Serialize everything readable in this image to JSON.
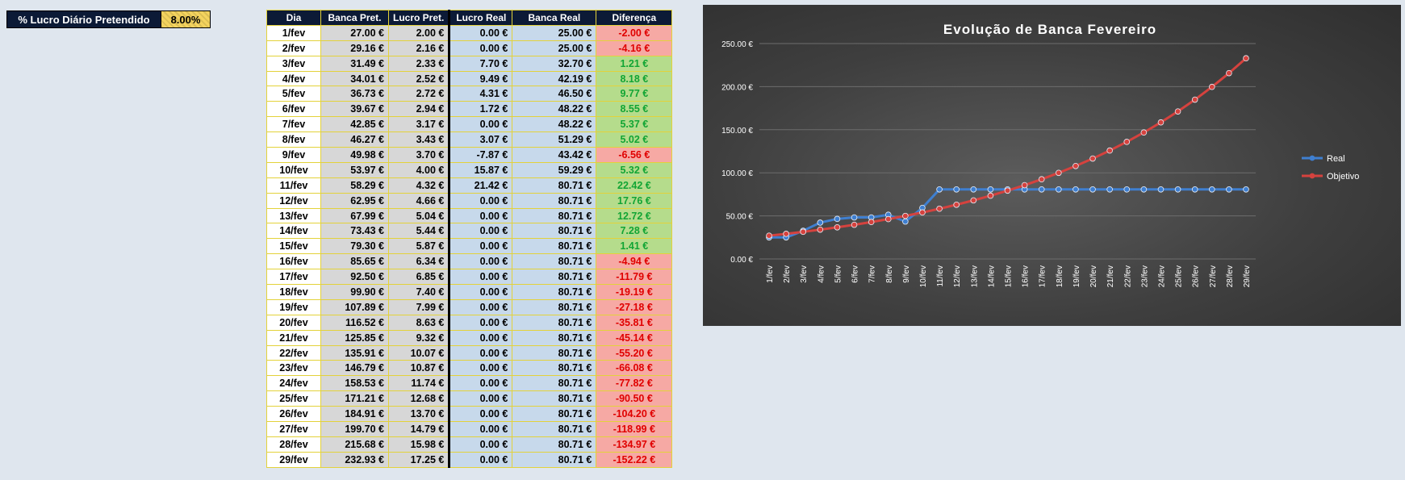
{
  "parameter": {
    "label": "% Lucro Diário Pretendido",
    "value": "8.00%"
  },
  "table": {
    "headers": [
      "Dia",
      "Banca Pret.",
      "Lucro Pret.",
      "Lucro Real",
      "Banca Real",
      "Diferença"
    ],
    "rows": [
      [
        "1/fev",
        "27.00 €",
        "2.00 €",
        "0.00 €",
        "25.00 €",
        "-2.00 €"
      ],
      [
        "2/fev",
        "29.16 €",
        "2.16 €",
        "0.00 €",
        "25.00 €",
        "-4.16 €"
      ],
      [
        "3/fev",
        "31.49 €",
        "2.33 €",
        "7.70 €",
        "32.70 €",
        "1.21 €"
      ],
      [
        "4/fev",
        "34.01 €",
        "2.52 €",
        "9.49 €",
        "42.19 €",
        "8.18 €"
      ],
      [
        "5/fev",
        "36.73 €",
        "2.72 €",
        "4.31 €",
        "46.50 €",
        "9.77 €"
      ],
      [
        "6/fev",
        "39.67 €",
        "2.94 €",
        "1.72 €",
        "48.22 €",
        "8.55 €"
      ],
      [
        "7/fev",
        "42.85 €",
        "3.17 €",
        "0.00 €",
        "48.22 €",
        "5.37 €"
      ],
      [
        "8/fev",
        "46.27 €",
        "3.43 €",
        "3.07 €",
        "51.29 €",
        "5.02 €"
      ],
      [
        "9/fev",
        "49.98 €",
        "3.70 €",
        "-7.87 €",
        "43.42 €",
        "-6.56 €"
      ],
      [
        "10/fev",
        "53.97 €",
        "4.00 €",
        "15.87 €",
        "59.29 €",
        "5.32 €"
      ],
      [
        "11/fev",
        "58.29 €",
        "4.32 €",
        "21.42 €",
        "80.71 €",
        "22.42 €"
      ],
      [
        "12/fev",
        "62.95 €",
        "4.66 €",
        "0.00 €",
        "80.71 €",
        "17.76 €"
      ],
      [
        "13/fev",
        "67.99 €",
        "5.04 €",
        "0.00 €",
        "80.71 €",
        "12.72 €"
      ],
      [
        "14/fev",
        "73.43 €",
        "5.44 €",
        "0.00 €",
        "80.71 €",
        "7.28 €"
      ],
      [
        "15/fev",
        "79.30 €",
        "5.87 €",
        "0.00 €",
        "80.71 €",
        "1.41 €"
      ],
      [
        "16/fev",
        "85.65 €",
        "6.34 €",
        "0.00 €",
        "80.71 €",
        "-4.94 €"
      ],
      [
        "17/fev",
        "92.50 €",
        "6.85 €",
        "0.00 €",
        "80.71 €",
        "-11.79 €"
      ],
      [
        "18/fev",
        "99.90 €",
        "7.40 €",
        "0.00 €",
        "80.71 €",
        "-19.19 €"
      ],
      [
        "19/fev",
        "107.89 €",
        "7.99 €",
        "0.00 €",
        "80.71 €",
        "-27.18 €"
      ],
      [
        "20/fev",
        "116.52 €",
        "8.63 €",
        "0.00 €",
        "80.71 €",
        "-35.81 €"
      ],
      [
        "21/fev",
        "125.85 €",
        "9.32 €",
        "0.00 €",
        "80.71 €",
        "-45.14 €"
      ],
      [
        "22/fev",
        "135.91 €",
        "10.07 €",
        "0.00 €",
        "80.71 €",
        "-55.20 €"
      ],
      [
        "23/fev",
        "146.79 €",
        "10.87 €",
        "0.00 €",
        "80.71 €",
        "-66.08 €"
      ],
      [
        "24/fev",
        "158.53 €",
        "11.74 €",
        "0.00 €",
        "80.71 €",
        "-77.82 €"
      ],
      [
        "25/fev",
        "171.21 €",
        "12.68 €",
        "0.00 €",
        "80.71 €",
        "-90.50 €"
      ],
      [
        "26/fev",
        "184.91 €",
        "13.70 €",
        "0.00 €",
        "80.71 €",
        "-104.20 €"
      ],
      [
        "27/fev",
        "199.70 €",
        "14.79 €",
        "0.00 €",
        "80.71 €",
        "-118.99 €"
      ],
      [
        "28/fev",
        "215.68 €",
        "15.98 €",
        "0.00 €",
        "80.71 €",
        "-134.97 €"
      ],
      [
        "29/fev",
        "232.93 €",
        "17.25 €",
        "0.00 €",
        "80.71 €",
        "-152.22 €"
      ]
    ]
  },
  "colors": {
    "header_bg": "#0c1a36",
    "positive": "#11a534",
    "negative": "#e00000",
    "real_series": "#3f7fd0",
    "objetivo_series": "#d5423e"
  },
  "chart_data": {
    "type": "line",
    "title": "Evolução de Banca Fevereiro",
    "x": [
      "1/fev",
      "2/fev",
      "3/fev",
      "4/fev",
      "5/fev",
      "6/fev",
      "7/fev",
      "8/fev",
      "9/fev",
      "10/fev",
      "11/fev",
      "12/fev",
      "13/fev",
      "14/fev",
      "15/fev",
      "16/fev",
      "17/fev",
      "18/fev",
      "19/fev",
      "20/fev",
      "21/fev",
      "22/fev",
      "23/fev",
      "24/fev",
      "25/fev",
      "26/fev",
      "27/fev",
      "28/fev",
      "29/fev"
    ],
    "series": [
      {
        "name": "Real",
        "color": "#3f7fd0",
        "values": [
          25.0,
          25.0,
          32.7,
          42.19,
          46.5,
          48.22,
          48.22,
          51.29,
          43.42,
          59.29,
          80.71,
          80.71,
          80.71,
          80.71,
          80.71,
          80.71,
          80.71,
          80.71,
          80.71,
          80.71,
          80.71,
          80.71,
          80.71,
          80.71,
          80.71,
          80.71,
          80.71,
          80.71,
          80.71
        ]
      },
      {
        "name": "Objetivo",
        "color": "#d5423e",
        "values": [
          27.0,
          29.16,
          31.49,
          34.01,
          36.73,
          39.67,
          42.85,
          46.27,
          49.98,
          53.97,
          58.29,
          62.95,
          67.99,
          73.43,
          79.3,
          85.65,
          92.5,
          99.9,
          107.89,
          116.52,
          125.85,
          135.91,
          146.79,
          158.53,
          171.21,
          184.91,
          199.7,
          215.68,
          232.93
        ]
      }
    ],
    "yticks": [
      "0.00 €",
      "50.00 €",
      "100.00 €",
      "150.00 €",
      "200.00 €",
      "250.00 €"
    ],
    "ylim": [
      0,
      250
    ],
    "grid": true,
    "legend": "right"
  }
}
